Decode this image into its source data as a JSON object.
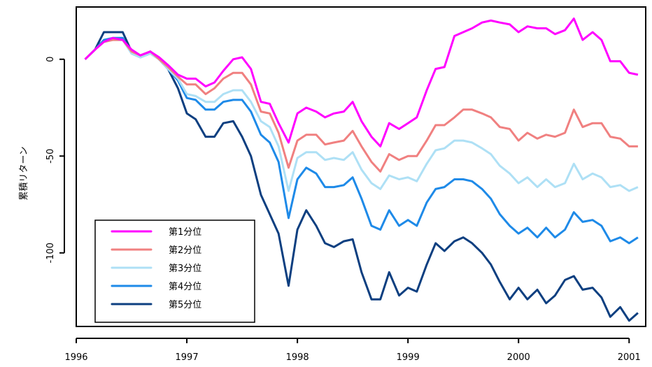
{
  "chart_data": {
    "type": "line",
    "title": "",
    "xlabel": "",
    "ylabel": "累積リターン",
    "xlim": [
      1996.0,
      2001.15
    ],
    "ylim": [
      -138,
      27
    ],
    "x_ticks": [
      1996,
      1997,
      1998,
      1999,
      2000,
      2001
    ],
    "x_tick_labels": [
      "1996",
      "1997",
      "1998",
      "1999",
      "2000",
      "2001"
    ],
    "y_ticks": [
      0,
      -50,
      -100
    ],
    "y_tick_labels": [
      "0",
      "-50",
      "-100"
    ],
    "grid": false,
    "legend_position": "bottom-left",
    "x": [
      1996.08,
      1996.17,
      1996.25,
      1996.33,
      1996.42,
      1996.5,
      1996.58,
      1996.67,
      1996.75,
      1996.83,
      1996.92,
      1997.0,
      1997.08,
      1997.17,
      1997.25,
      1997.33,
      1997.42,
      1997.5,
      1997.58,
      1997.67,
      1997.75,
      1997.83,
      1997.92,
      1998.0,
      1998.08,
      1998.17,
      1998.25,
      1998.33,
      1998.42,
      1998.5,
      1998.58,
      1998.67,
      1998.75,
      1998.83,
      1998.92,
      1999.0,
      1999.08,
      1999.17,
      1999.25,
      1999.33,
      1999.42,
      1999.5,
      1999.58,
      1999.67,
      1999.75,
      1999.83,
      1999.92,
      2000.0,
      2000.08,
      2000.17,
      2000.25,
      2000.33,
      2000.42,
      2000.5,
      2000.58,
      2000.67,
      2000.75,
      2000.83,
      2000.92,
      2001.0,
      2001.08
    ],
    "series": [
      {
        "name": "第1分位",
        "color": "#ff00ff",
        "values": [
          0,
          5,
          9,
          11,
          10,
          5,
          2,
          4,
          1,
          -3,
          -8,
          -10,
          -10,
          -14,
          -12,
          -6,
          0,
          1,
          -5,
          -22,
          -23,
          -33,
          -43,
          -28,
          -25,
          -27,
          -30,
          -28,
          -27,
          -22,
          -32,
          -40,
          -45,
          -33,
          -36,
          -33,
          -30,
          -16,
          -5,
          -4,
          12,
          14,
          16,
          19,
          20,
          19,
          18,
          14,
          17,
          16,
          16,
          13,
          15,
          21,
          10,
          14,
          10,
          -1,
          -1,
          -7,
          -8
        ]
      },
      {
        "name": "第2分位",
        "color": "#f08080",
        "values": [
          0,
          5,
          9,
          10,
          10,
          4,
          2,
          4,
          0,
          -4,
          -9,
          -13,
          -13,
          -18,
          -15,
          -10,
          -7,
          -7,
          -13,
          -27,
          -28,
          -38,
          -56,
          -42,
          -39,
          -39,
          -44,
          -43,
          -42,
          -37,
          -45,
          -53,
          -58,
          -49,
          -52,
          -50,
          -50,
          -42,
          -34,
          -34,
          -30,
          -26,
          -26,
          -28,
          -30,
          -35,
          -36,
          -42,
          -38,
          -41,
          -39,
          -40,
          -38,
          -26,
          -35,
          -33,
          -33,
          -40,
          -41,
          -45,
          -45
        ]
      },
      {
        "name": "第3分位",
        "color": "#aee0f5",
        "values": [
          0,
          5,
          9,
          10,
          10,
          3,
          1,
          3,
          0,
          -5,
          -10,
          -18,
          -19,
          -22,
          -22,
          -18,
          -16,
          -16,
          -22,
          -32,
          -35,
          -45,
          -68,
          -51,
          -48,
          -48,
          -52,
          -51,
          -52,
          -48,
          -57,
          -64,
          -67,
          -60,
          -62,
          -61,
          -63,
          -54,
          -47,
          -46,
          -42,
          -42,
          -43,
          -46,
          -49,
          -55,
          -59,
          -64,
          -61,
          -66,
          -62,
          -66,
          -64,
          -54,
          -62,
          -59,
          -61,
          -66,
          -65,
          -68,
          -66
        ]
      },
      {
        "name": "第4分位",
        "color": "#1e8ae8",
        "values": [
          0,
          5,
          10,
          11,
          11,
          3,
          1,
          3,
          0,
          -5,
          -11,
          -20,
          -21,
          -26,
          -26,
          -22,
          -21,
          -21,
          -27,
          -39,
          -43,
          -53,
          -82,
          -62,
          -56,
          -59,
          -66,
          -66,
          -65,
          -61,
          -72,
          -86,
          -88,
          -78,
          -86,
          -83,
          -86,
          -74,
          -67,
          -66,
          -62,
          -62,
          -63,
          -67,
          -72,
          -80,
          -86,
          -90,
          -87,
          -92,
          -87,
          -92,
          -88,
          -79,
          -84,
          -83,
          -86,
          -94,
          -92,
          -95,
          -92
        ]
      },
      {
        "name": "第5分位",
        "color": "#0d3f80",
        "values": [
          0,
          5,
          14,
          14,
          14,
          4,
          1,
          4,
          0,
          -5,
          -15,
          -28,
          -31,
          -40,
          -40,
          -33,
          -32,
          -40,
          -50,
          -70,
          -80,
          -90,
          -117,
          -88,
          -78,
          -86,
          -95,
          -97,
          -94,
          -93,
          -110,
          -124,
          -124,
          -110,
          -122,
          -118,
          -120,
          -106,
          -95,
          -99,
          -94,
          -92,
          -95,
          -100,
          -106,
          -115,
          -124,
          -118,
          -124,
          -119,
          -126,
          -122,
          -114,
          -112,
          -119,
          -118,
          -123,
          -133,
          -128,
          -135,
          -131
        ]
      }
    ]
  },
  "legend": {
    "items": [
      "第1分位",
      "第2分位",
      "第3分位",
      "第4分位",
      "第5分位"
    ]
  }
}
